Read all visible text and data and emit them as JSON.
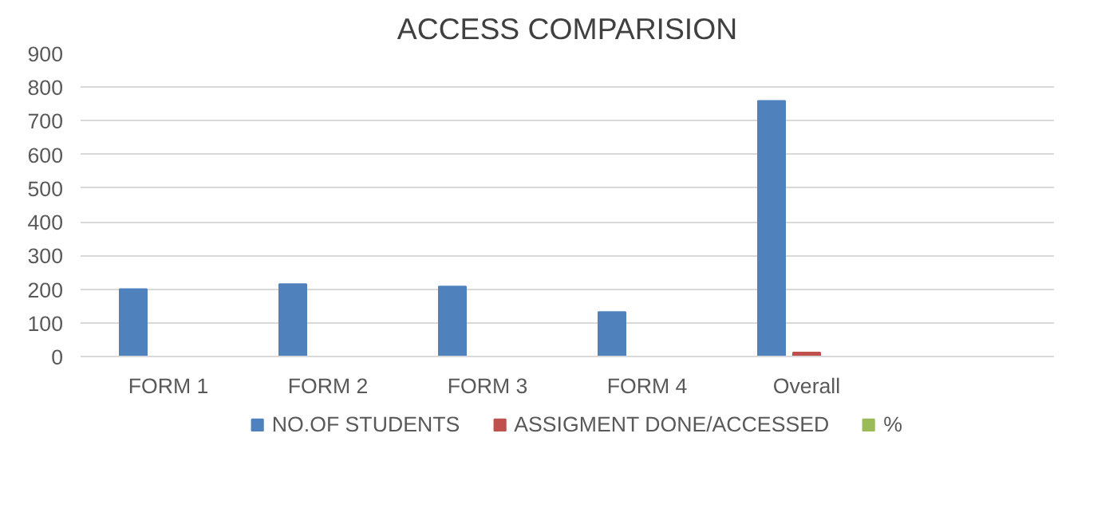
{
  "chart_data": {
    "type": "bar",
    "title": "ACCESS COMPARISION",
    "categories": [
      "FORM 1",
      "FORM 2",
      "FORM 3",
      "FORM 4",
      "Overall",
      null
    ],
    "series": [
      {
        "name": "NO.OF STUDENTS",
        "color": "#4f81bd",
        "values": [
          200,
          215,
          208,
          132,
          759,
          null
        ]
      },
      {
        "name": "ASSIGMENT DONE/ACCESSED",
        "color": "#c0504d",
        "values": [
          0,
          0,
          0,
          0,
          12,
          null
        ]
      },
      {
        "name": "%",
        "color": "#9bbb59",
        "values": [
          0,
          0,
          0,
          0,
          0,
          null
        ]
      }
    ],
    "ylim": [
      0,
      900
    ],
    "yticks": [
      0,
      100,
      200,
      300,
      400,
      500,
      600,
      700,
      800,
      900
    ],
    "grid": "y",
    "legend": "bottom"
  }
}
